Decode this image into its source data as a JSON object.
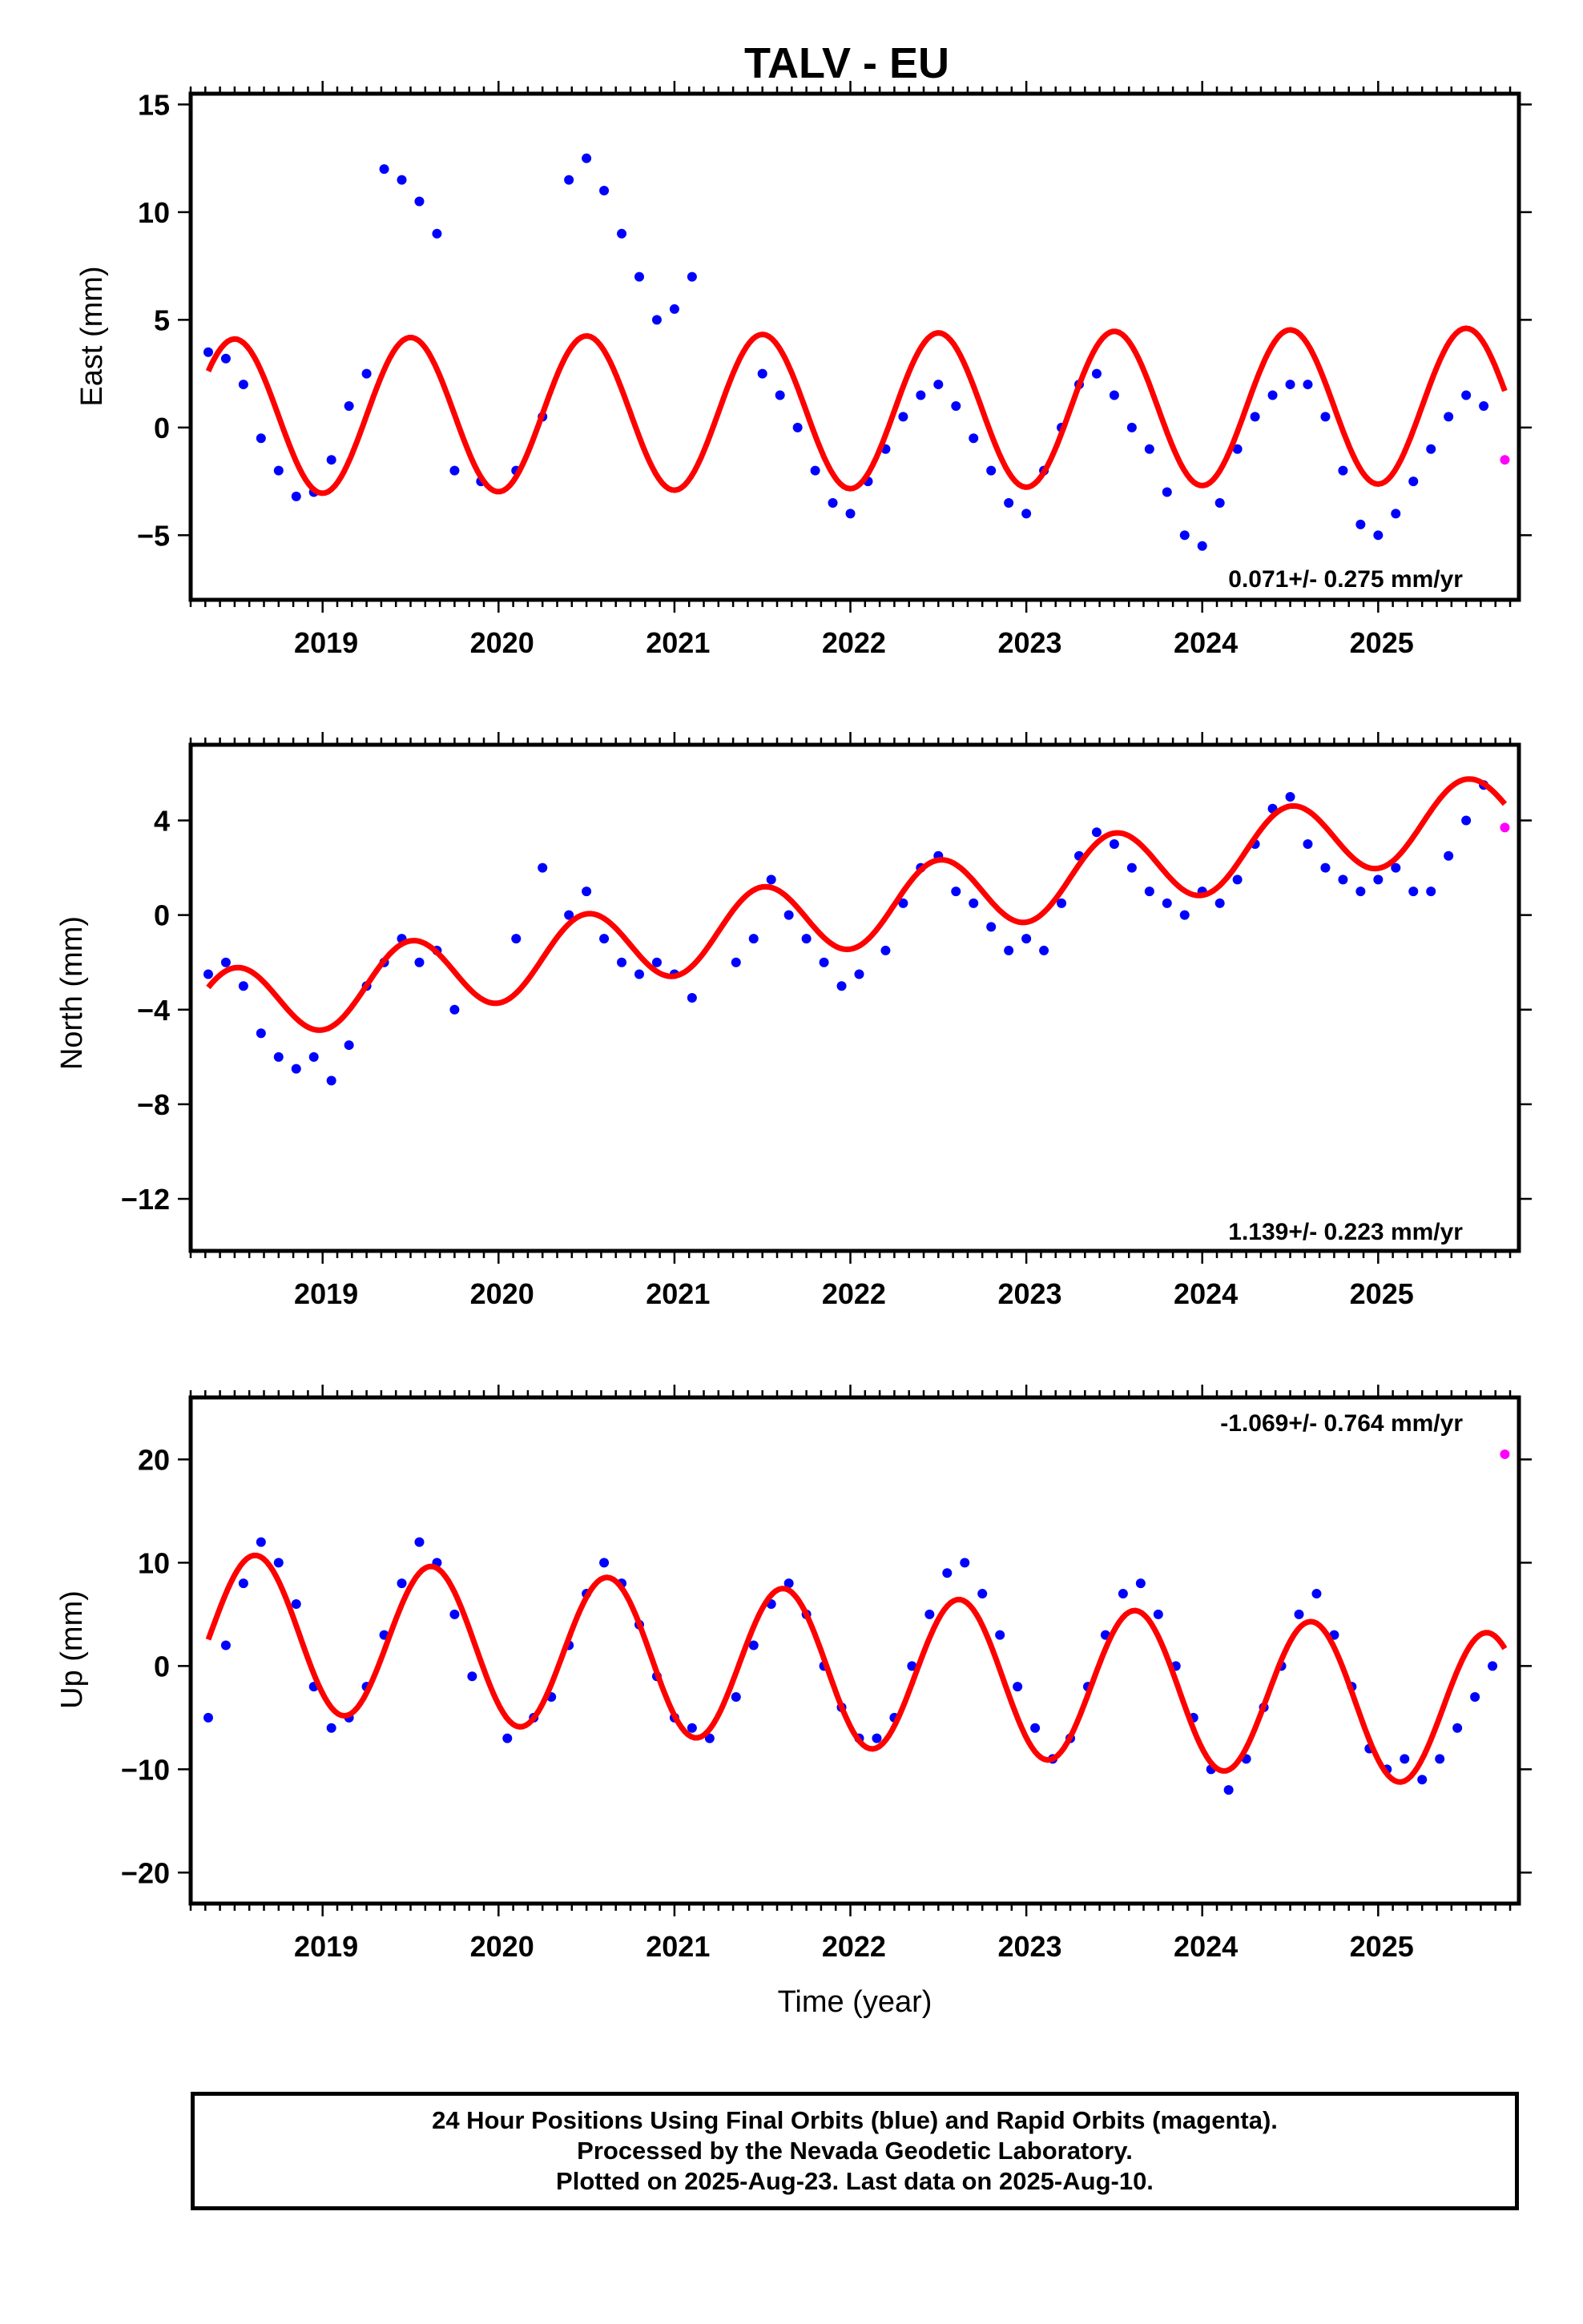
{
  "title": "TALV - EU",
  "xlabel": "Time (year)",
  "colors": {
    "final": "#0000ff",
    "rapid": "#ff00ff",
    "model": "#ff0000",
    "frame": "#000000"
  },
  "footer": {
    "line1": "24 Hour Positions Using Final Orbits (blue) and Rapid Orbits (magenta).",
    "line2": "Processed by the Nevada Geodetic Laboratory.",
    "line3": "Plotted on 2025-Aug-23. Last data on 2025-Aug-10."
  },
  "chart_data": [
    {
      "type": "scatter",
      "component": "east",
      "ylabel": "East (mm)",
      "xlim": [
        2018.25,
        2025.8
      ],
      "ylim": [
        -8,
        15.5
      ],
      "xticks": [
        2019,
        2020,
        2021,
        2022,
        2023,
        2024,
        2025
      ],
      "yticks": [
        -5,
        0,
        5,
        10,
        15
      ],
      "rate_label": "0.071+/- 0.275 mm/yr",
      "model": {
        "offset": 0.5,
        "trend_mm_per_yr": 0.071,
        "amplitude": 3.6,
        "peak_phase": 0.5,
        "x_start": 2018.35,
        "x_end": 2025.72
      },
      "series": [
        {
          "name": "Final Orbits (blue)",
          "kind": "points",
          "x": [
            2018.35,
            2018.45,
            2018.55,
            2018.65,
            2018.75,
            2018.85,
            2018.95,
            2019.05,
            2019.15,
            2019.25,
            2019.35,
            2019.45,
            2019.55,
            2019.65,
            2019.75,
            2019.9,
            2020.1,
            2020.25,
            2020.4,
            2020.5,
            2020.6,
            2020.7,
            2020.8,
            2020.9,
            2021.0,
            2021.1,
            2021.5,
            2021.6,
            2021.7,
            2021.8,
            2021.9,
            2022.0,
            2022.1,
            2022.2,
            2022.3,
            2022.4,
            2022.5,
            2022.6,
            2022.7,
            2022.8,
            2022.9,
            2023.0,
            2023.1,
            2023.2,
            2023.3,
            2023.4,
            2023.5,
            2023.6,
            2023.7,
            2023.8,
            2023.9,
            2024.0,
            2024.1,
            2024.2,
            2024.3,
            2024.4,
            2024.5,
            2024.6,
            2024.7,
            2024.8,
            2024.9,
            2025.0,
            2025.1,
            2025.2,
            2025.3,
            2025.4,
            2025.5,
            2025.6
          ],
          "y": [
            3.5,
            3.2,
            2.0,
            -0.5,
            -2.0,
            -3.2,
            -3.0,
            -1.5,
            1.0,
            2.5,
            12.0,
            11.5,
            10.5,
            9.0,
            -2.0,
            -2.5,
            -2.0,
            0.5,
            11.5,
            12.5,
            11.0,
            9.0,
            7.0,
            5.0,
            5.5,
            7.0,
            2.5,
            1.5,
            0.0,
            -2.0,
            -3.5,
            -4.0,
            -2.5,
            -1.0,
            0.5,
            1.5,
            2.0,
            1.0,
            -0.5,
            -2.0,
            -3.5,
            -4.0,
            -2.0,
            0.0,
            2.0,
            2.5,
            1.5,
            0.0,
            -1.0,
            -3.0,
            -5.0,
            -5.5,
            -3.5,
            -1.0,
            0.5,
            1.5,
            2.0,
            2.0,
            0.5,
            -2.0,
            -4.5,
            -5.0,
            -4.0,
            -2.5,
            -1.0,
            0.5,
            1.5,
            1.0
          ]
        },
        {
          "name": "Rapid Orbits (magenta)",
          "kind": "points",
          "x": [
            2025.72
          ],
          "y": [
            -1.5
          ]
        }
      ]
    },
    {
      "type": "scatter",
      "component": "north",
      "ylabel": "North (mm)",
      "xlim": [
        2018.25,
        2025.8
      ],
      "ylim": [
        -14.2,
        7.2
      ],
      "xticks": [
        2019,
        2020,
        2021,
        2022,
        2023,
        2024,
        2025
      ],
      "yticks": [
        -12,
        -8,
        -4,
        0,
        4
      ],
      "rate_label": "1.139+/- 0.223 mm/yr",
      "model": {
        "offset": -4.0,
        "trend_mm_per_yr": 1.139,
        "amplitude": 1.6,
        "peak_phase": 0.5,
        "x_start": 2018.35,
        "x_end": 2025.72
      },
      "series": [
        {
          "name": "Final Orbits (blue)",
          "kind": "points",
          "x": [
            2018.35,
            2018.45,
            2018.55,
            2018.65,
            2018.75,
            2018.85,
            2018.95,
            2019.05,
            2019.15,
            2019.25,
            2019.35,
            2019.45,
            2019.55,
            2019.65,
            2019.75,
            2020.1,
            2020.25,
            2020.4,
            2020.5,
            2020.6,
            2020.7,
            2020.8,
            2020.9,
            2021.0,
            2021.1,
            2021.35,
            2021.45,
            2021.55,
            2021.65,
            2021.75,
            2021.85,
            2021.95,
            2022.05,
            2022.2,
            2022.3,
            2022.4,
            2022.5,
            2022.6,
            2022.7,
            2022.8,
            2022.9,
            2023.0,
            2023.1,
            2023.2,
            2023.3,
            2023.4,
            2023.5,
            2023.6,
            2023.7,
            2023.8,
            2023.9,
            2024.0,
            2024.1,
            2024.2,
            2024.3,
            2024.4,
            2024.5,
            2024.6,
            2024.7,
            2024.8,
            2024.9,
            2025.0,
            2025.1,
            2025.2,
            2025.3,
            2025.4,
            2025.5,
            2025.6
          ],
          "y": [
            -2.5,
            -2.0,
            -3.0,
            -5.0,
            -6.0,
            -6.5,
            -6.0,
            -7.0,
            -5.5,
            -3.0,
            -2.0,
            -1.0,
            -2.0,
            -1.5,
            -4.0,
            -1.0,
            2.0,
            0.0,
            1.0,
            -1.0,
            -2.0,
            -2.5,
            -2.0,
            -2.5,
            -3.5,
            -2.0,
            -1.0,
            1.5,
            0.0,
            -1.0,
            -2.0,
            -3.0,
            -2.5,
            -1.5,
            0.5,
            2.0,
            2.5,
            1.0,
            0.5,
            -0.5,
            -1.5,
            -1.0,
            -1.5,
            0.5,
            2.5,
            3.5,
            3.0,
            2.0,
            1.0,
            0.5,
            0.0,
            1.0,
            0.5,
            1.5,
            3.0,
            4.5,
            5.0,
            3.0,
            2.0,
            1.5,
            1.0,
            1.5,
            2.0,
            1.0,
            1.0,
            2.5,
            4.0,
            5.5
          ]
        },
        {
          "name": "Rapid Orbits (magenta)",
          "kind": "points",
          "x": [
            2025.72
          ],
          "y": [
            3.7
          ]
        }
      ]
    },
    {
      "type": "scatter",
      "component": "up",
      "ylabel": "Up (mm)",
      "xlim": [
        2018.25,
        2025.8
      ],
      "ylim": [
        -23,
        26
      ],
      "xticks": [
        2019,
        2020,
        2021,
        2022,
        2023,
        2024,
        2025
      ],
      "yticks": [
        -20,
        -10,
        0,
        10,
        20
      ],
      "rate_label": "-1.069+/- 0.764 mm/yr",
      "model": {
        "offset": 3.5,
        "trend_mm_per_yr": -1.069,
        "amplitude": 7.5,
        "peak_phase": 0.62,
        "x_start": 2018.35,
        "x_end": 2025.72
      },
      "series": [
        {
          "name": "Final Orbits (blue)",
          "kind": "points",
          "x": [
            2018.35,
            2018.45,
            2018.55,
            2018.65,
            2018.75,
            2018.85,
            2018.95,
            2019.05,
            2019.15,
            2019.25,
            2019.35,
            2019.45,
            2019.55,
            2019.65,
            2019.75,
            2019.85,
            2020.05,
            2020.2,
            2020.3,
            2020.4,
            2020.5,
            2020.6,
            2020.7,
            2020.8,
            2020.9,
            2021.0,
            2021.1,
            2021.2,
            2021.35,
            2021.45,
            2021.55,
            2021.65,
            2021.75,
            2021.85,
            2021.95,
            2022.05,
            2022.15,
            2022.25,
            2022.35,
            2022.45,
            2022.55,
            2022.65,
            2022.75,
            2022.85,
            2022.95,
            2023.05,
            2023.15,
            2023.25,
            2023.35,
            2023.45,
            2023.55,
            2023.65,
            2023.75,
            2023.85,
            2023.95,
            2024.05,
            2024.15,
            2024.25,
            2024.35,
            2024.45,
            2024.55,
            2024.65,
            2024.75,
            2024.85,
            2024.95,
            2025.05,
            2025.15,
            2025.25,
            2025.35,
            2025.45,
            2025.55,
            2025.65
          ],
          "y": [
            -5.0,
            2.0,
            8.0,
            12.0,
            10.0,
            6.0,
            -2.0,
            -6.0,
            -5.0,
            -2.0,
            3.0,
            8.0,
            12.0,
            10.0,
            5.0,
            -1.0,
            -7.0,
            -5.0,
            -3.0,
            2.0,
            7.0,
            10.0,
            8.0,
            4.0,
            -1.0,
            -5.0,
            -6.0,
            -7.0,
            -3.0,
            2.0,
            6.0,
            8.0,
            5.0,
            0.0,
            -4.0,
            -7.0,
            -7.0,
            -5.0,
            0.0,
            5.0,
            9.0,
            10.0,
            7.0,
            3.0,
            -2.0,
            -6.0,
            -9.0,
            -7.0,
            -2.0,
            3.0,
            7.0,
            8.0,
            5.0,
            0.0,
            -5.0,
            -10.0,
            -12.0,
            -9.0,
            -4.0,
            0.0,
            5.0,
            7.0,
            3.0,
            -2.0,
            -8.0,
            -10.0,
            -9.0,
            -11.0,
            -9.0,
            -6.0,
            -3.0,
            0.0
          ]
        },
        {
          "name": "Rapid Orbits (magenta)",
          "kind": "points",
          "x": [
            2025.72
          ],
          "y": [
            20.5
          ]
        }
      ]
    }
  ]
}
